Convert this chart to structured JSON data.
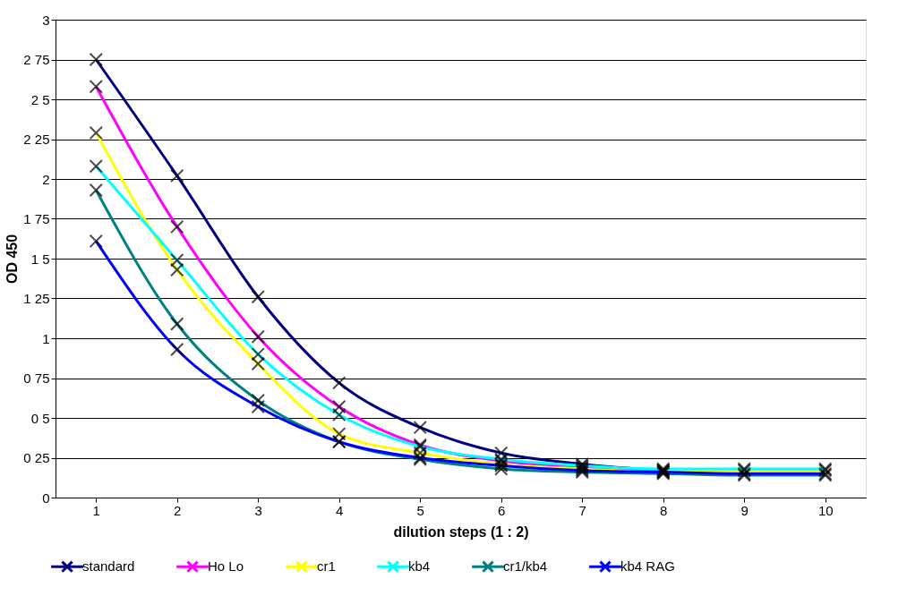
{
  "chart_data": {
    "type": "line",
    "xlabel": "dilution steps (1 : 2)",
    "ylabel": "OD 450",
    "categories": [
      "1",
      "2",
      "3",
      "4",
      "5",
      "6",
      "7",
      "8",
      "9",
      "10"
    ],
    "series": [
      {
        "name": "standard",
        "color": "#000080",
        "values": [
          2.75,
          2.02,
          1.26,
          0.72,
          0.44,
          0.28,
          0.21,
          0.17,
          null,
          null
        ]
      },
      {
        "name": "Ho Lo",
        "color": "#ff00ff",
        "values": [
          2.58,
          1.7,
          1.01,
          0.57,
          0.33,
          0.23,
          0.19,
          0.17,
          null,
          null
        ]
      },
      {
        "name": "cr1",
        "color": "#ffff00",
        "values": [
          2.29,
          1.43,
          0.84,
          0.4,
          0.28,
          0.21,
          0.18,
          0.16,
          0.17,
          0.17
        ]
      },
      {
        "name": "kb4",
        "color": "#00ffff",
        "values": [
          2.08,
          1.49,
          0.9,
          0.52,
          0.32,
          0.24,
          0.2,
          0.18,
          0.18,
          0.18
        ]
      },
      {
        "name": "cr1/kb4",
        "color": "#008080",
        "values": [
          1.93,
          1.09,
          0.61,
          0.35,
          0.24,
          0.18,
          0.16,
          0.15,
          0.14,
          0.14
        ]
      },
      {
        "name": "kb4 RAG",
        "color": "#0000ff",
        "values": [
          1.61,
          0.93,
          0.57,
          0.35,
          0.25,
          0.2,
          0.17,
          0.16,
          0.15,
          0.15
        ]
      }
    ],
    "ylim": [
      0,
      3
    ],
    "yticks": [
      0,
      {
        "value": 0.25,
        "label": "0 25"
      },
      {
        "value": 0.5,
        "label": "0 5"
      },
      {
        "value": 0.75,
        "label": "0 75"
      },
      1,
      {
        "value": 1.25,
        "label": "1 25"
      },
      {
        "value": 1.5,
        "label": "1 5"
      },
      {
        "value": 1.75,
        "label": "1 75"
      },
      2,
      {
        "value": 2.25,
        "label": "2 25"
      },
      {
        "value": 2.5,
        "label": "2 5"
      },
      {
        "value": 2.75,
        "label": "2 75"
      },
      3
    ],
    "grid": "y",
    "legend": "bottom",
    "marker": "cross",
    "line_style": "solid"
  }
}
